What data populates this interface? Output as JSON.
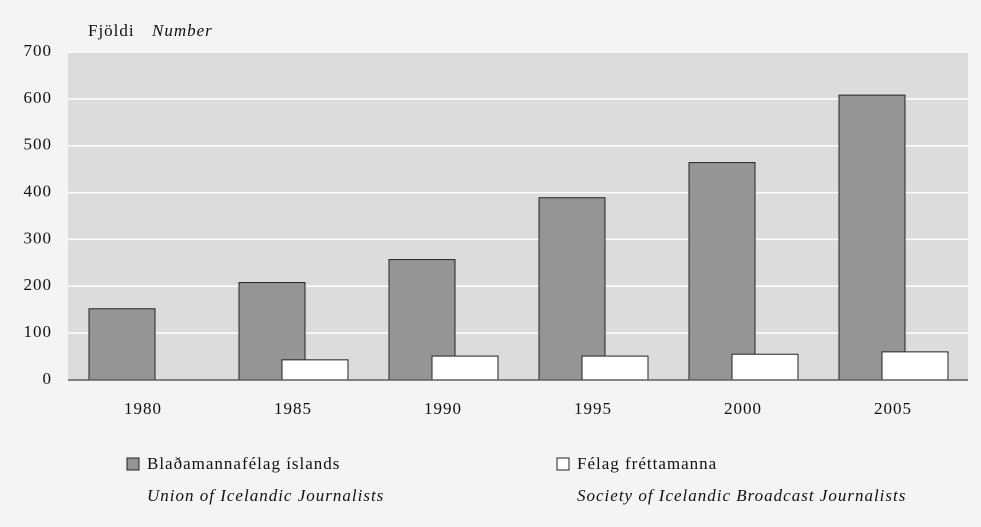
{
  "chart_data": {
    "type": "bar",
    "y_label": "Fjöldi",
    "y_label_en": "Number",
    "categories": [
      "1980",
      "1985",
      "1990",
      "1995",
      "2000",
      "2005"
    ],
    "series": [
      {
        "name": "Blaðamannafélag íslands",
        "name_en": "Union of Icelandic Journalists",
        "color": "#959595",
        "values": [
          152,
          208,
          257,
          389,
          464,
          608
        ]
      },
      {
        "name": "Félag fréttamanna",
        "name_en": "Society of Icelandic Broadcast Journalists",
        "color": "#ffffff",
        "values": [
          null,
          43,
          51,
          51,
          55,
          60
        ]
      }
    ],
    "ylim": [
      0,
      700
    ],
    "yticks": [
      0,
      100,
      200,
      300,
      400,
      500,
      600,
      700
    ],
    "grid": true
  }
}
